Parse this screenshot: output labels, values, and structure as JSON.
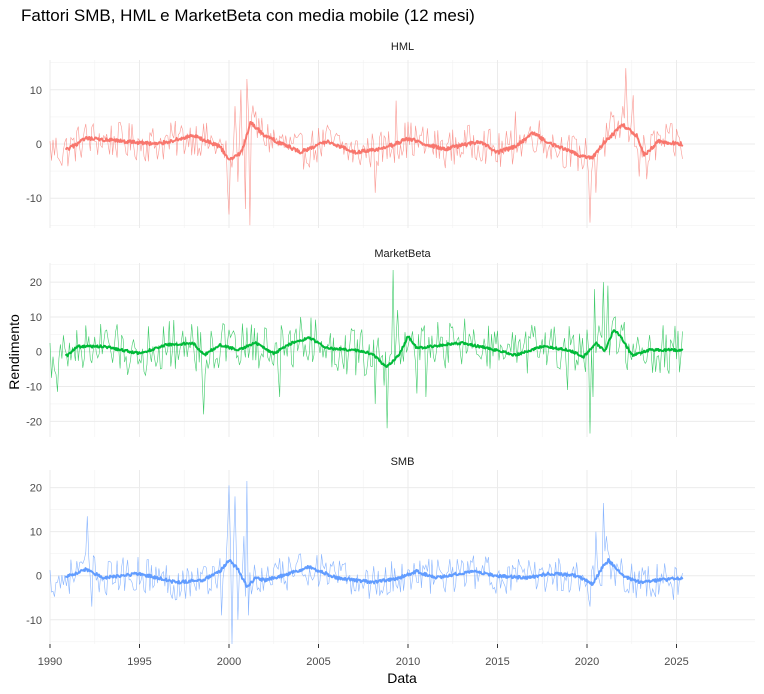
{
  "chart_data": {
    "type": "line",
    "title": "Fattori SMB, HML e MarketBeta con media mobile (12 mesi)",
    "xlabel": "Data",
    "ylabel": "Rendimento",
    "x_range": [
      1990,
      2025.4
    ],
    "x_ticks": [
      "1990",
      "1995",
      "2000",
      "2005",
      "2010",
      "2015",
      "2020",
      "2025"
    ],
    "grid": true,
    "legend": "none",
    "panels": [
      {
        "name": "HML",
        "color": "#F8766D",
        "ylim": [
          -15.5,
          15.5
        ],
        "y_ticks": [
          10,
          0,
          -10
        ],
        "y_tick_labels": [
          "10",
          "0",
          "-10"
        ],
        "monthly_amplitude": 2.2,
        "ma_keypoints": [
          [
            1991.0,
            -1.0
          ],
          [
            1992.0,
            1.0
          ],
          [
            1994.0,
            0.5
          ],
          [
            1996.0,
            0.0
          ],
          [
            1998.0,
            1.5
          ],
          [
            1999.5,
            -0.5
          ],
          [
            2000.0,
            -3.0
          ],
          [
            2000.7,
            -1.5
          ],
          [
            2001.2,
            4.0
          ],
          [
            2002.0,
            1.5
          ],
          [
            2004.0,
            -1.5
          ],
          [
            2005.5,
            0.5
          ],
          [
            2007.0,
            -1.5
          ],
          [
            2008.5,
            -1.0
          ],
          [
            2010.0,
            1.0
          ],
          [
            2012.0,
            -1.0
          ],
          [
            2014.0,
            0.5
          ],
          [
            2015.0,
            -1.5
          ],
          [
            2016.0,
            -0.5
          ],
          [
            2017.0,
            2.0
          ],
          [
            2018.0,
            0.0
          ],
          [
            2019.5,
            -2.0
          ],
          [
            2020.3,
            -2.5
          ],
          [
            2021.0,
            0.5
          ],
          [
            2022.0,
            3.5
          ],
          [
            2022.8,
            1.5
          ],
          [
            2023.2,
            -2.0
          ],
          [
            2024.0,
            0.5
          ],
          [
            2025.3,
            0.0
          ]
        ],
        "spikes": [
          [
            1990.7,
            -4.0
          ],
          [
            1999.9,
            -8.0
          ],
          [
            2000.0,
            -13.0
          ],
          [
            2000.3,
            7.0
          ],
          [
            2000.5,
            -7.0
          ],
          [
            2000.7,
            10.0
          ],
          [
            2000.9,
            -12.0
          ],
          [
            2001.0,
            12.0
          ],
          [
            2001.2,
            -15.0
          ],
          [
            2001.5,
            6.0
          ],
          [
            2008.2,
            -9.0
          ],
          [
            2009.3,
            8.0
          ],
          [
            2016.0,
            6.0
          ],
          [
            2020.2,
            -14.5
          ],
          [
            2020.5,
            -9.0
          ],
          [
            2021.3,
            6.0
          ],
          [
            2022.0,
            7.0
          ],
          [
            2022.2,
            14.0
          ],
          [
            2022.6,
            9.0
          ],
          [
            2022.9,
            -6.0
          ],
          [
            2023.3,
            -6.5
          ]
        ]
      },
      {
        "name": "MarketBeta",
        "color": "#00BA38",
        "ylim": [
          -24.5,
          25.5
        ],
        "y_ticks": [
          20,
          10,
          0,
          -10,
          -20
        ],
        "y_tick_labels": [
          "20",
          "10",
          "0",
          "-10",
          "-20"
        ],
        "monthly_amplitude": 4.5,
        "ma_keypoints": [
          [
            1991.0,
            -1.0
          ],
          [
            1991.5,
            1.5
          ],
          [
            1993.0,
            1.5
          ],
          [
            1994.0,
            0.5
          ],
          [
            1995.0,
            -0.5
          ],
          [
            1996.5,
            2.0
          ],
          [
            1998.0,
            2.5
          ],
          [
            1998.6,
            -1.0
          ],
          [
            1999.5,
            2.0
          ],
          [
            2000.5,
            0.5
          ],
          [
            2001.5,
            2.5
          ],
          [
            2002.5,
            -0.5
          ],
          [
            2003.5,
            2.5
          ],
          [
            2004.5,
            4.0
          ],
          [
            2005.5,
            1.0
          ],
          [
            2007.0,
            0.5
          ],
          [
            2008.0,
            -0.5
          ],
          [
            2008.8,
            -4.5
          ],
          [
            2009.5,
            -1.0
          ],
          [
            2010.0,
            4.5
          ],
          [
            2010.5,
            1.0
          ],
          [
            2012.0,
            2.0
          ],
          [
            2013.0,
            2.5
          ],
          [
            2014.5,
            1.0
          ],
          [
            2016.0,
            -1.0
          ],
          [
            2017.5,
            1.5
          ],
          [
            2019.0,
            0.5
          ],
          [
            2019.8,
            -1.5
          ],
          [
            2020.5,
            2.5
          ],
          [
            2021.0,
            0.0
          ],
          [
            2021.5,
            6.5
          ],
          [
            2022.0,
            3.5
          ],
          [
            2022.5,
            -1.0
          ],
          [
            2023.5,
            0.5
          ],
          [
            2025.3,
            0.5
          ]
        ],
        "spikes": [
          [
            1990.1,
            -7.5
          ],
          [
            1990.4,
            -11.5
          ],
          [
            1998.6,
            -18.0
          ],
          [
            2002.8,
            -13.0
          ],
          [
            2008.2,
            -15.0
          ],
          [
            2008.8,
            -22.0
          ],
          [
            2009.2,
            23.5
          ],
          [
            2009.4,
            12.0
          ],
          [
            2010.5,
            -12.0
          ],
          [
            2011.0,
            -13.0
          ],
          [
            2018.9,
            -11.0
          ],
          [
            2020.2,
            -23.5
          ],
          [
            2020.3,
            -13.0
          ],
          [
            2020.4,
            18.0
          ],
          [
            2020.9,
            20.0
          ],
          [
            2021.2,
            19.0
          ],
          [
            2021.6,
            10.0
          ]
        ]
      },
      {
        "name": "SMB",
        "color": "#619CFF",
        "ylim": [
          -15.5,
          24.0
        ],
        "y_ticks": [
          20,
          10,
          0,
          -10
        ],
        "y_tick_labels": [
          "20",
          "10",
          "0",
          "-10"
        ],
        "monthly_amplitude": 2.6,
        "ma_keypoints": [
          [
            1990.5,
            -1.0
          ],
          [
            1992.0,
            1.5
          ],
          [
            1993.0,
            -0.5
          ],
          [
            1995.0,
            0.5
          ],
          [
            1997.0,
            -1.5
          ],
          [
            1998.5,
            -1.0
          ],
          [
            1999.5,
            1.0
          ],
          [
            2000.0,
            3.5
          ],
          [
            2000.5,
            1.5
          ],
          [
            2001.0,
            -2.5
          ],
          [
            2001.5,
            -0.5
          ],
          [
            2002.0,
            -1.0
          ],
          [
            2003.0,
            0.0
          ],
          [
            2004.5,
            2.0
          ],
          [
            2006.0,
            -0.5
          ],
          [
            2008.0,
            -1.5
          ],
          [
            2009.5,
            -0.5
          ],
          [
            2010.5,
            1.0
          ],
          [
            2011.5,
            -0.5
          ],
          [
            2013.5,
            1.0
          ],
          [
            2015.0,
            0.0
          ],
          [
            2016.5,
            -0.5
          ],
          [
            2018.0,
            0.5
          ],
          [
            2019.5,
            0.0
          ],
          [
            2020.3,
            -2.0
          ],
          [
            2020.8,
            1.5
          ],
          [
            2021.2,
            3.5
          ],
          [
            2022.0,
            0.0
          ],
          [
            2023.0,
            -1.5
          ],
          [
            2024.0,
            -1.0
          ],
          [
            2025.3,
            -0.5
          ]
        ],
        "spikes": [
          [
            1992.1,
            13.5
          ],
          [
            1992.3,
            -7.0
          ],
          [
            1999.6,
            -9.0
          ],
          [
            1999.9,
            10.0
          ],
          [
            2000.0,
            20.5
          ],
          [
            2000.2,
            -15.5
          ],
          [
            2000.3,
            18.0
          ],
          [
            2000.5,
            -10.0
          ],
          [
            2000.8,
            9.0
          ],
          [
            2001.0,
            21.5
          ],
          [
            2001.1,
            -9.0
          ],
          [
            2020.2,
            -7.0
          ],
          [
            2020.5,
            10.0
          ],
          [
            2020.9,
            16.5
          ],
          [
            2021.1,
            9.0
          ],
          [
            2024.8,
            -5.5
          ]
        ]
      }
    ]
  }
}
